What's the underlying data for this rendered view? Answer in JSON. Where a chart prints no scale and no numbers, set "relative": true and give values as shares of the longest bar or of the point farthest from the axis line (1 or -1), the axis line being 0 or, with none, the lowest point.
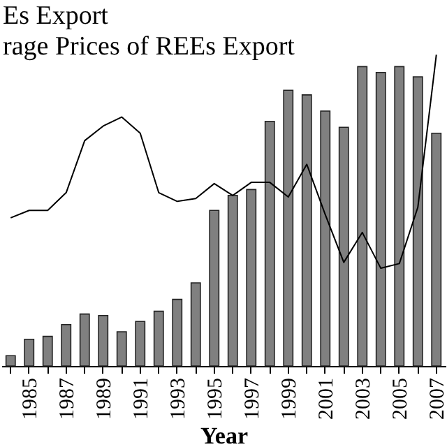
{
  "chart_data": {
    "type": "bar",
    "relative": true,
    "xlabel": "Year",
    "annotations": [
      "Es Export",
      "rage Prices of REEs Export"
    ],
    "categories": [
      null,
      "1985",
      null,
      "1987",
      null,
      "1989",
      null,
      "1991",
      null,
      "1993",
      null,
      "1995",
      null,
      "1997",
      null,
      "1999",
      null,
      "2001",
      null,
      "2003",
      null,
      "2005",
      null,
      "2007"
    ],
    "series": [
      {
        "color": "#808080",
        "values": [
          0.033,
          0.086,
          0.095,
          0.133,
          0.167,
          0.162,
          0.11,
          0.143,
          0.176,
          0.214,
          0.267,
          0.5,
          0.548,
          0.567,
          0.786,
          0.886,
          0.871,
          0.819,
          0.767,
          0.962,
          0.943,
          0.962,
          0.929,
          0.748
        ]
      },
      {
        "type": "line",
        "color": "#000000",
        "values": [
          0.476,
          0.5,
          0.5,
          0.557,
          0.724,
          0.771,
          0.8,
          0.748,
          0.557,
          0.529,
          0.538,
          0.586,
          0.548,
          0.59,
          0.59,
          0.543,
          0.648,
          0.486,
          0.333,
          0.429,
          0.314,
          0.329,
          0.51,
          1.0
        ]
      }
    ]
  }
}
